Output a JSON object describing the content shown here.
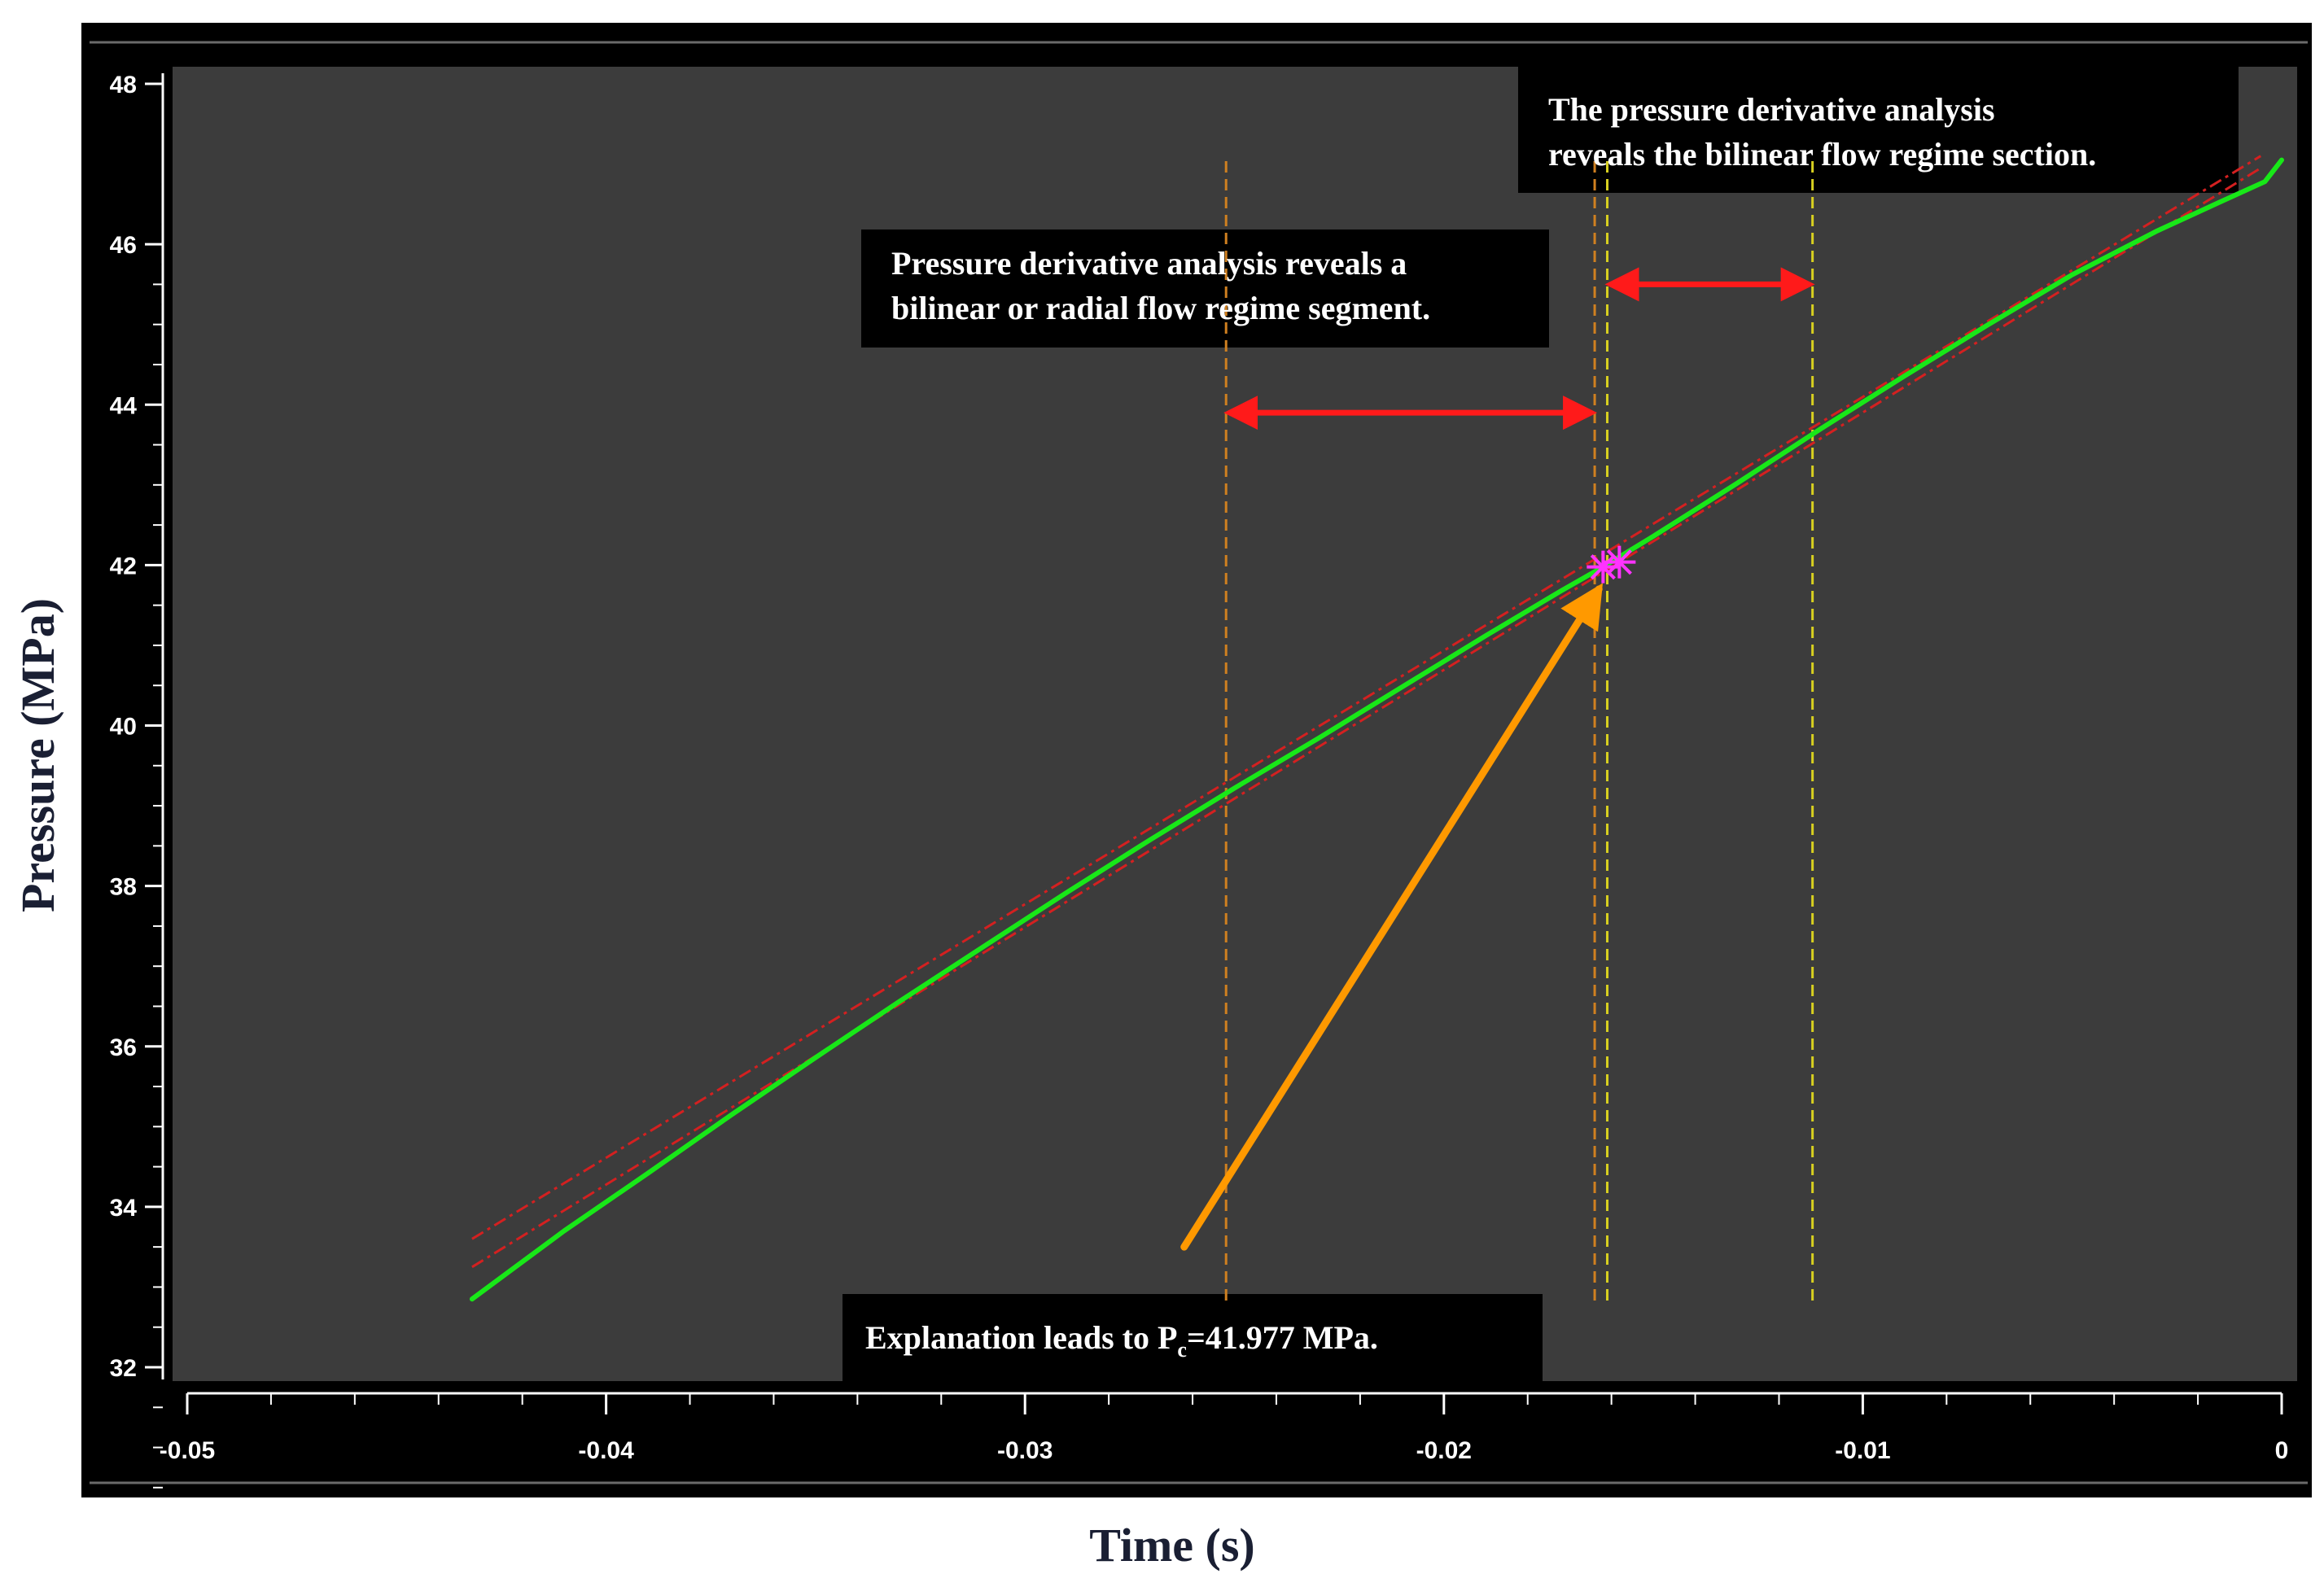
{
  "chart_data": {
    "type": "line",
    "xlabel": "Time (s)",
    "ylabel": "Pressure (MPa)",
    "xlim": [
      -0.05,
      0
    ],
    "ylim": [
      32,
      48
    ],
    "x_ticks": [
      "-0.05",
      "-0.04",
      "-0.03",
      "-0.02",
      "-0.01",
      "0"
    ],
    "y_ticks": [
      "32",
      "34",
      "36",
      "38",
      "40",
      "42",
      "44",
      "46",
      "48"
    ],
    "grid": false,
    "colors": {
      "background": "#3c3c3c",
      "frame": "#000000",
      "pressure_curve": "#18e818",
      "fit_lines": "#d42020",
      "boundary_1": "#d08020",
      "boundary_2": "#d8d020",
      "span_arrows": "#ff1a1a",
      "pointer_arrow": "#ff9900",
      "marker": "#ff33ff"
    },
    "series": [
      {
        "x": [
          -0.0432,
          -0.041,
          -0.039,
          -0.037,
          -0.035,
          -0.033,
          -0.031,
          -0.029,
          -0.027,
          -0.025,
          -0.023,
          -0.021,
          -0.019,
          -0.0172,
          -0.0162,
          -0.015,
          -0.013,
          -0.011,
          -0.009,
          -0.007,
          -0.005,
          -0.003,
          -0.0015,
          -0.0004,
          0
        ],
        "y": [
          32.85,
          33.7,
          34.42,
          35.15,
          35.86,
          36.56,
          37.24,
          37.92,
          38.58,
          39.22,
          39.84,
          40.48,
          41.12,
          41.68,
          41.977,
          42.36,
          43.02,
          43.7,
          44.36,
          45.0,
          45.62,
          46.16,
          46.52,
          46.78,
          47.05
        ]
      }
    ],
    "fit_lines": [
      {
        "x": [
          -0.0432,
          -0.0005
        ],
        "y": [
          33.25,
          46.95
        ]
      },
      {
        "x": [
          -0.0432,
          -0.0005
        ],
        "y": [
          33.6,
          47.1
        ]
      }
    ],
    "vertical_lines": [
      {
        "x": -0.0252,
        "style": "dashed"
      },
      {
        "x": -0.0164,
        "style": "dashed"
      },
      {
        "x": -0.0161,
        "style": "dashed"
      },
      {
        "x": -0.0112,
        "style": "dashed"
      }
    ],
    "span_arrows": [
      {
        "x_from": -0.0252,
        "x_to": -0.0164,
        "y": 43.9
      },
      {
        "x_from": -0.0161,
        "x_to": -0.0112,
        "y": 45.5
      }
    ],
    "marker": {
      "x": -0.0162,
      "y": 41.977
    },
    "pointer_arrow": {
      "from": [
        -0.0262,
        33.5
      ],
      "to": [
        -0.0163,
        41.7
      ]
    },
    "annotations": {
      "top_right": [
        "The pressure derivative analysis",
        "reveals the bilinear flow regime section."
      ],
      "middle": [
        "Pressure derivative analysis reveals a",
        "bilinear or radial flow regime segment."
      ],
      "bottom_main": "Explanation leads to P",
      "bottom_sub": "c",
      "bottom_tail": "=41.977 MPa."
    }
  }
}
